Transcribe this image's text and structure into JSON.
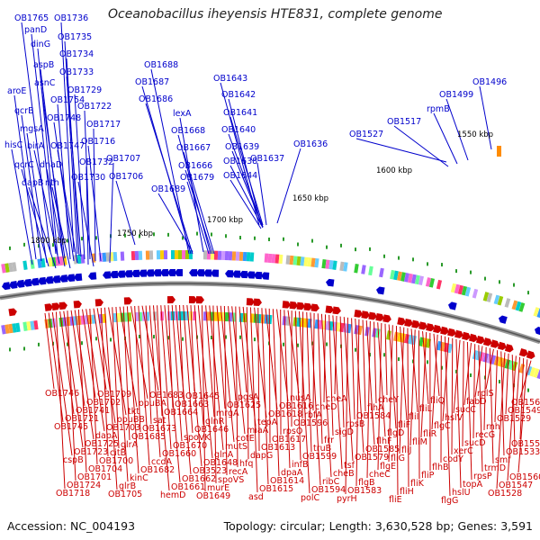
{
  "title": "Oceanobacillus iheyensis HTE831, complete genome",
  "footer": {
    "accession": "Accession: NC_004193",
    "stats": "Topology: circular; Length: 3,630,528 bp; Genes: 3,591"
  },
  "ticks": [
    "1550 kbp",
    "1600 kbp",
    "1650 kbp",
    "1700 kbp",
    "1750 kbp",
    "1800 kbp"
  ],
  "colors": {
    "forward": "#0000cc",
    "reverse": "#cc0000",
    "backbone": "#777777",
    "gc_tick": "#2a9a2a",
    "orange": "#ff8c00"
  },
  "top_labels": [
    "OB1765",
    "OB1736",
    "panD",
    "dinG",
    "OB1735",
    "OB1734",
    "aspB",
    "asnC",
    "OB1733",
    "aroE",
    "OB1754",
    "OB1729",
    "qcrB",
    "OB1748",
    "OB1722",
    "mgsA",
    "OB1717",
    "hisC",
    "birA",
    "OB1747",
    "OB1716",
    "qcrC",
    "dnaD",
    "OB1732",
    "dapB",
    "nth",
    "OB1730",
    "OB1707",
    "OB1706",
    "OB1688",
    "OB1687",
    "OB1686",
    "lexA",
    "OB1668",
    "OB1667",
    "OB1666",
    "OB1679",
    "OB1689",
    "OB1643",
    "OB1642",
    "OB1641",
    "OB1640",
    "OB1639",
    "OB1638",
    "OB1637",
    "OB1644",
    "OB1636",
    "OB1527",
    "OB1517",
    "rpmB",
    "OB1499",
    "OB1496"
  ],
  "bottom_labels": [
    "OB1746",
    "OB1745",
    "cspB",
    "OB1718",
    "OB1721",
    "OB1723",
    "OB1724",
    "OB1741",
    "OB1725",
    "OB1701",
    "OB1702",
    "dapA",
    "OB1704",
    "OB1709",
    "OB1703",
    "OB1700",
    "OB1705",
    "opuBB",
    "citB",
    "glrB",
    "tkt",
    "glrA",
    "kinC",
    "opuBA",
    "OB1685",
    "OB1682",
    "OB1683",
    "OB1673",
    "ccdA",
    "hemD",
    "sat",
    "OB1660",
    "OB1661",
    "OB1664",
    "OB1670",
    "OB1662",
    "OB1663",
    "spoVK",
    "OB3523",
    "OB1645",
    "OB1646",
    "OB1648",
    "OB1649",
    "glnR",
    "glnA",
    "murE",
    "mrgA",
    "mutS",
    "spoVS",
    "OB1625",
    "cotE",
    "recA",
    "pgsA",
    "miaA",
    "hfq",
    "asd",
    "tepA",
    "dapG",
    "OB1615",
    "OB1618",
    "OB1613",
    "OB1614",
    "OB1616",
    "OB1617",
    "dpaA",
    "nusA",
    "rpsO",
    "infB",
    "polC",
    "OB1596",
    "OB1599",
    "OB1594",
    "rbfA",
    "truB",
    "ribC",
    "cheD",
    "frr",
    "cheB",
    "cheA",
    "sigD",
    "tsf",
    "pyrH",
    "rpsB",
    "OB1579",
    "OB1583",
    "OB1584",
    "OB1585",
    "flgB",
    "flhA",
    "flhF",
    "cheC",
    "cheY",
    "flgD",
    "flgE",
    "fliE",
    "fliF",
    "fliG",
    "fliH",
    "fliI",
    "fliJ",
    "fliK",
    "fliL",
    "fliM",
    "fliP",
    "fliQ",
    "fliR",
    "flhB",
    "flgG",
    "flgC",
    "codY",
    "hslU",
    "hslV",
    "xerC",
    "topA",
    "sucC",
    "sucD",
    "rpsP",
    "fabD",
    "recG",
    "trmD",
    "rplS",
    "rnh",
    "smf",
    "OB1528",
    "OB1529",
    "OB1533",
    "OB1547",
    "OB1549",
    "OB1551",
    "OB1560",
    "OB1561"
  ]
}
